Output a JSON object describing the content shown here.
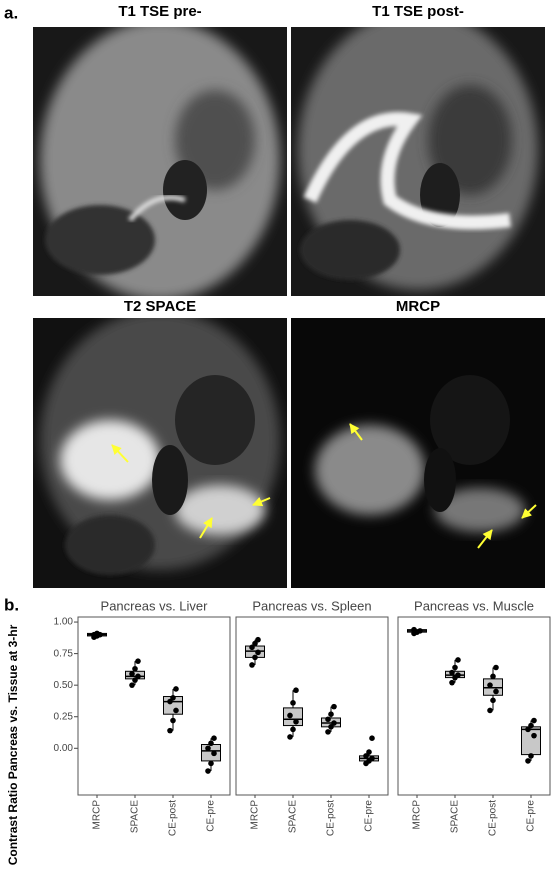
{
  "figure": {
    "panel_a_label": "a.",
    "panel_b_label": "b.",
    "images": [
      {
        "title": "T1 TSE pre-"
      },
      {
        "title": "T1 TSE post-"
      },
      {
        "title": "T2 SPACE"
      },
      {
        "title": "MRCP"
      }
    ]
  },
  "chart_data": {
    "type": "box",
    "ylabel": "Contrast Ratio Pancreas vs. Tissue at 3-hr",
    "categories": [
      "MRCP",
      "SPACE",
      "CE-post",
      "CE-pre"
    ],
    "ylim": [
      -0.37,
      1.04
    ],
    "yticks": [
      {
        "value": 0,
        "label": "0.00"
      },
      {
        "value": 0.25,
        "label": "0.25"
      },
      {
        "value": 0.5,
        "label": "0.50"
      },
      {
        "value": 0.75,
        "label": "0.75"
      },
      {
        "value": 1,
        "label": "1.00"
      }
    ],
    "grid": false,
    "box_color": "#c8c8c8",
    "facets": [
      {
        "title": "Pancreas vs. Liver",
        "boxes": [
          {
            "min": 0.88,
            "q1": 0.89,
            "median": 0.9,
            "q3": 0.91,
            "max": 0.91,
            "points": [
              0.88,
              0.89,
              0.9,
              0.9,
              0.91
            ]
          },
          {
            "min": 0.5,
            "q1": 0.55,
            "median": 0.57,
            "q3": 0.61,
            "max": 0.69,
            "points": [
              0.5,
              0.54,
              0.57,
              0.59,
              0.63,
              0.69
            ]
          },
          {
            "min": 0.14,
            "q1": 0.27,
            "median": 0.37,
            "q3": 0.41,
            "max": 0.47,
            "points": [
              0.14,
              0.22,
              0.3,
              0.37,
              0.4,
              0.47
            ]
          },
          {
            "min": -0.18,
            "q1": -0.1,
            "median": -0.02,
            "q3": 0.03,
            "max": 0.08,
            "points": [
              -0.18,
              -0.12,
              -0.04,
              0.0,
              0.04,
              0.08
            ]
          }
        ]
      },
      {
        "title": "Pancreas vs. Spleen",
        "boxes": [
          {
            "min": 0.66,
            "q1": 0.72,
            "median": 0.77,
            "q3": 0.81,
            "max": 0.86,
            "points": [
              0.66,
              0.72,
              0.76,
              0.8,
              0.83,
              0.86
            ]
          },
          {
            "min": 0.09,
            "q1": 0.18,
            "median": 0.23,
            "q3": 0.32,
            "max": 0.46,
            "points": [
              0.09,
              0.15,
              0.21,
              0.26,
              0.36,
              0.46
            ]
          },
          {
            "min": 0.13,
            "q1": 0.17,
            "median": 0.2,
            "q3": 0.24,
            "max": 0.33,
            "points": [
              0.13,
              0.17,
              0.2,
              0.23,
              0.27,
              0.33
            ]
          },
          {
            "min": -0.12,
            "q1": -0.1,
            "median": -0.08,
            "q3": -0.06,
            "max": -0.03,
            "points": [
              -0.12,
              -0.1,
              -0.08,
              -0.06,
              -0.03,
              0.08
            ]
          }
        ]
      },
      {
        "title": "Pancreas vs. Muscle",
        "boxes": [
          {
            "min": 0.91,
            "q1": 0.92,
            "median": 0.93,
            "q3": 0.94,
            "max": 0.94,
            "points": [
              0.91,
              0.92,
              0.93,
              0.94
            ]
          },
          {
            "min": 0.52,
            "q1": 0.56,
            "median": 0.58,
            "q3": 0.61,
            "max": 0.7,
            "points": [
              0.52,
              0.56,
              0.58,
              0.6,
              0.64,
              0.7
            ]
          },
          {
            "min": 0.3,
            "q1": 0.42,
            "median": 0.48,
            "q3": 0.55,
            "max": 0.64,
            "points": [
              0.3,
              0.38,
              0.45,
              0.5,
              0.57,
              0.64
            ]
          },
          {
            "min": -0.1,
            "q1": -0.05,
            "median": 0.15,
            "q3": 0.17,
            "max": 0.22,
            "points": [
              -0.1,
              -0.06,
              0.1,
              0.15,
              0.18,
              0.22
            ]
          }
        ]
      }
    ]
  }
}
